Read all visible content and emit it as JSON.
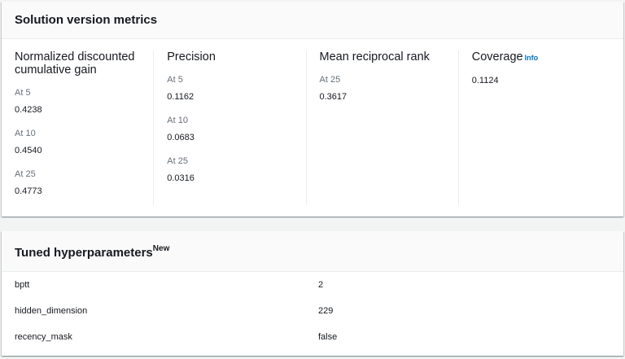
{
  "metrics_panel": {
    "title": "Solution version metrics",
    "columns": [
      {
        "title": "Normalized discounted cumulative gain",
        "metrics": [
          {
            "label": "At 5",
            "value": "0.4238"
          },
          {
            "label": "At 10",
            "value": "0.4540"
          },
          {
            "label": "At 25",
            "value": "0.4773"
          }
        ]
      },
      {
        "title": "Precision",
        "metrics": [
          {
            "label": "At 5",
            "value": "0.1162"
          },
          {
            "label": "At 10",
            "value": "0.0683"
          },
          {
            "label": "At 25",
            "value": "0.0316"
          }
        ]
      },
      {
        "title": "Mean reciprocal rank",
        "metrics": [
          {
            "label": "At 25",
            "value": "0.3617"
          }
        ]
      },
      {
        "title": "Coverage",
        "info_label": "Info",
        "metrics": [
          {
            "label": "",
            "value": "0.1124"
          }
        ]
      }
    ]
  },
  "hyper_panel": {
    "title": "Tuned hyperparameters",
    "badge": "New",
    "rows": [
      {
        "name": "bptt",
        "value": "2"
      },
      {
        "name": "hidden_dimension",
        "value": "229"
      },
      {
        "name": "recency_mask",
        "value": "false"
      }
    ]
  },
  "colors": {
    "background": "#f2f3f3",
    "panel": "#ffffff",
    "header": "#fafafa",
    "link": "#0073bb",
    "muted": "#687078",
    "text": "#16191f"
  }
}
